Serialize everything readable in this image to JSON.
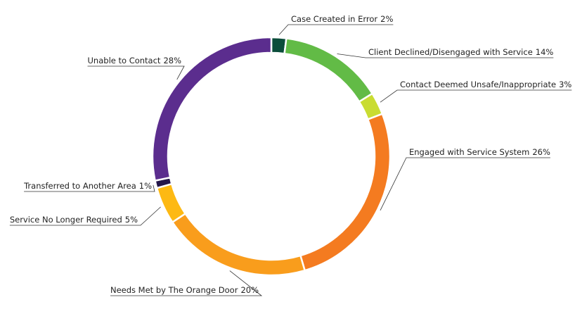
{
  "chart_data": {
    "type": "donut",
    "categories": [
      "Case Created in Error",
      "Client Declined/Disengaged with Service",
      "Contact Deemed Unsafe/Inappropriate",
      "Engaged with Service System",
      "Needs Met by The Orange Door",
      "Service No Longer Required",
      "Transferred to Another Area",
      "Unable to Contact"
    ],
    "values": [
      2,
      14,
      3,
      26,
      20,
      5,
      1,
      28
    ],
    "value_labels": [
      "2%",
      "14%",
      "3%",
      "26%",
      "20%",
      "5%",
      "1%",
      "28%"
    ],
    "colors": [
      "#0b4d3a",
      "#62bb46",
      "#c9dc32",
      "#f47b20",
      "#f99d1c",
      "#fdb913",
      "#24164a",
      "#5b2d8e"
    ]
  }
}
